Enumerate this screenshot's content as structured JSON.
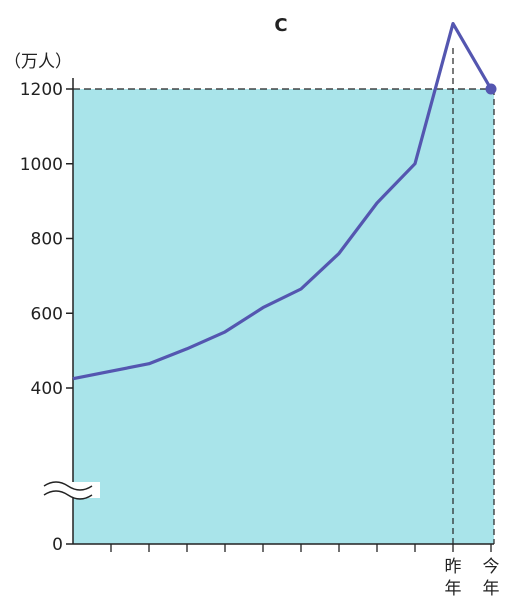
{
  "chart_data": {
    "type": "line",
    "title": "C",
    "ylabel": "（万人）",
    "yticks": [
      "0",
      "400",
      "600",
      "800",
      "1000",
      "1200"
    ],
    "ylim": [
      400,
      1200
    ],
    "axis_break": true,
    "x_categories": [
      "",
      "",
      "",
      "",
      "",
      "",
      "",
      "",
      "",
      "",
      "昨年",
      "今年"
    ],
    "x_labels_shown": [
      "昨\n年",
      "今\n年"
    ],
    "series": [
      {
        "values": [
          425,
          445,
          465,
          505,
          550,
          615,
          665,
          760,
          895,
          1000,
          1375,
          1200
        ],
        "color": "#5456b0"
      }
    ],
    "reference_line": {
      "y": 1200,
      "style": "dashed"
    },
    "reference_vline_at": "昨年",
    "end_marker": true,
    "colors": {
      "plot_fill": "#a9e4ea",
      "line": "#5456b0",
      "axis": "#222222"
    },
    "grid": false
  }
}
